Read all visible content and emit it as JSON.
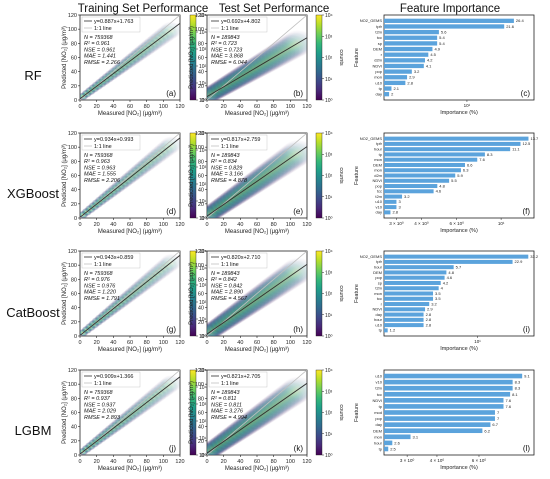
{
  "figure": {
    "column_titles": [
      "Training Set Performance",
      "Test Set Performance",
      "Feature Importance"
    ],
    "row_labels": [
      "RF",
      "XGBoost",
      "CatBoost",
      "LGBM"
    ]
  },
  "labels": {
    "scatter_xlabel": "Measured [NO₂] (μg/m³)",
    "scatter_ylabel": "Predicted [NO₂] (μg/m³)",
    "colorbar_label": "counts",
    "colorbar_ticks": [
      "10⁰",
      "10¹",
      "10²",
      "10³",
      "10⁴",
      "10⁵"
    ],
    "identity_label": "1:1 line",
    "importance_xlabel": "Importance (%)",
    "importance_ylabel": "Feature"
  },
  "chart_data": [
    {
      "type": "scatter",
      "panel": "a",
      "model": "RF",
      "set": "train",
      "fit": "y=0.887x+1.763",
      "slope": 0.887,
      "intercept": 1.763,
      "N": "759368",
      "R2": "0.961",
      "NSE": "0.961",
      "MAE": "1.441",
      "RMSE": "2.266",
      "cbar_max_exp": 5,
      "xlim": [
        0,
        120
      ],
      "ylim": [
        0,
        120
      ],
      "xticks": [
        0,
        20,
        40,
        60,
        80,
        100,
        120
      ],
      "yticks": [
        0,
        20,
        40,
        60,
        80,
        100,
        120
      ]
    },
    {
      "type": "scatter",
      "panel": "b",
      "model": "RF",
      "set": "test",
      "fit": "y=0.692x+4.802",
      "slope": 0.692,
      "intercept": 4.802,
      "N": "189843",
      "R2": "0.723",
      "NSE": "0.723",
      "MAE": "3.868",
      "RMSE": "6.044",
      "cbar_max_exp": 4,
      "xlim": [
        0,
        120
      ],
      "ylim": [
        0,
        120
      ],
      "xticks": [
        0,
        20,
        40,
        60,
        80,
        100,
        120
      ],
      "yticks": [
        0,
        20,
        40,
        60,
        80,
        100,
        120
      ]
    },
    {
      "type": "bar",
      "orientation": "horizontal",
      "panel": "c",
      "model": "RF",
      "categories": [
        "NO2_GEMS",
        "tpfr",
        "t2m",
        "tcc",
        "sp",
        "DEM",
        "r",
        "d2m",
        "NDVI",
        "pop",
        "mon",
        "u10",
        "tp",
        "day"
      ],
      "values": [
        26.4,
        21.6,
        5.6,
        5.4,
        5.4,
        4.9,
        4.5,
        4.2,
        4.1,
        3.2,
        2.9,
        2.8,
        2.1,
        2.0
      ],
      "xscale": "log",
      "xlim": [
        1.8,
        40
      ],
      "xticks": [
        {
          "v": 10,
          "t": "10¹"
        }
      ]
    },
    {
      "type": "scatter",
      "panel": "d",
      "model": "XGBoost",
      "set": "train",
      "fit": "y=0.934x+0.993",
      "slope": 0.934,
      "intercept": 0.993,
      "N": "759368",
      "R2": "0.963",
      "NSE": "0.963",
      "MAE": "1.555",
      "RMSE": "2.206",
      "cbar_max_exp": 5,
      "xlim": [
        0,
        120
      ],
      "ylim": [
        0,
        120
      ],
      "xticks": [
        0,
        20,
        40,
        60,
        80,
        100,
        120
      ],
      "yticks": [
        0,
        20,
        40,
        60,
        80,
        100,
        120
      ]
    },
    {
      "type": "scatter",
      "panel": "e",
      "model": "XGBoost",
      "set": "test",
      "fit": "y=0.817x+2.759",
      "slope": 0.817,
      "intercept": 2.759,
      "N": "189843",
      "R2": "0.834",
      "NSE": "0.829",
      "MAE": "3.166",
      "RMSE": "4.878",
      "cbar_max_exp": 4,
      "xlim": [
        0,
        120
      ],
      "ylim": [
        0,
        120
      ],
      "xticks": [
        0,
        20,
        40,
        60,
        80,
        100,
        120
      ],
      "yticks": [
        0,
        20,
        40,
        60,
        80,
        100,
        120
      ]
    },
    {
      "type": "bar",
      "orientation": "horizontal",
      "panel": "f",
      "model": "XGBoost",
      "categories": [
        "NO2_GEMS",
        "tpfr",
        "hour",
        "tp",
        "mon",
        "DEM",
        "mon",
        "d2m",
        "NDVI",
        "pop",
        "tcc",
        "t2m",
        "u10",
        "v10",
        "day"
      ],
      "values": [
        13.7,
        12.5,
        11.1,
        8.3,
        7.6,
        6.6,
        6.3,
        5.9,
        5.5,
        4.8,
        4.6,
        3.2,
        3.0,
        3.0,
        2.8
      ],
      "xscale": "log",
      "xlim": [
        2.6,
        14.6
      ],
      "xticks": [
        {
          "v": 3,
          "t": "3 × 10⁰"
        },
        {
          "v": 4,
          "t": "4 × 10⁰"
        },
        {
          "v": 6,
          "t": "6 × 10⁰"
        },
        {
          "v": 10,
          "t": "10¹"
        }
      ]
    },
    {
      "type": "scatter",
      "panel": "g",
      "model": "CatBoost",
      "set": "train",
      "fit": "y=0.943x+0.859",
      "slope": 0.943,
      "intercept": 0.859,
      "N": "759368",
      "R2": "0.976",
      "NSE": "0.976",
      "MAE": "1.220",
      "RMSE": "1.791",
      "cbar_max_exp": 5,
      "xlim": [
        0,
        120
      ],
      "ylim": [
        0,
        120
      ],
      "xticks": [
        0,
        20,
        40,
        60,
        80,
        100,
        120
      ],
      "yticks": [
        0,
        20,
        40,
        60,
        80,
        100,
        120
      ]
    },
    {
      "type": "scatter",
      "panel": "h",
      "model": "CatBoost",
      "set": "test",
      "fit": "y=0.820x+2.710",
      "slope": 0.82,
      "intercept": 2.71,
      "N": "189843",
      "R2": "0.842",
      "NSE": "0.842",
      "MAE": "2.890",
      "RMSE": "4.567",
      "cbar_max_exp": 4,
      "xlim": [
        0,
        120
      ],
      "ylim": [
        0,
        120
      ],
      "xticks": [
        0,
        20,
        40,
        60,
        80,
        100,
        120
      ],
      "yticks": [
        0,
        20,
        40,
        60,
        80,
        100,
        120
      ]
    },
    {
      "type": "bar",
      "orientation": "horizontal",
      "panel": "i",
      "model": "CatBoost",
      "categories": [
        "NO2_GEMS",
        "tpfr",
        "hour",
        "DEM",
        "pop",
        "sp",
        "t2m",
        "mon",
        "tcc",
        "r",
        "NDVI",
        "day",
        "hour",
        "u10",
        "tp"
      ],
      "values": [
        33.2,
        22.9,
        5.7,
        4.8,
        4.6,
        4.2,
        4.0,
        3.5,
        3.5,
        3.2,
        2.9,
        2.8,
        2.8,
        2.8,
        1.2
      ],
      "xscale": "log",
      "xlim": [
        1.1,
        38
      ],
      "xticks": [
        {
          "v": 10,
          "t": "10¹"
        }
      ]
    },
    {
      "type": "scatter",
      "panel": "j",
      "model": "LGBM",
      "set": "train",
      "fit": "y=0.909x+1.366",
      "slope": 0.909,
      "intercept": 1.366,
      "N": "759368",
      "R2": "0.937",
      "NSE": "0.937",
      "MAE": "2.029",
      "RMSE": "2.893",
      "cbar_max_exp": 5,
      "xlim": [
        0,
        120
      ],
      "ylim": [
        0,
        120
      ],
      "xticks": [
        0,
        20,
        40,
        60,
        80,
        100,
        120
      ],
      "yticks": [
        0,
        20,
        40,
        60,
        80,
        100,
        120
      ]
    },
    {
      "type": "scatter",
      "panel": "k",
      "model": "LGBM",
      "set": "test",
      "fit": "y=0.821x+2.705",
      "slope": 0.821,
      "intercept": 2.705,
      "N": "189843",
      "R2": "0.811",
      "NSE": "0.811",
      "MAE": "3.276",
      "RMSE": "4.994",
      "cbar_max_exp": 4,
      "xlim": [
        0,
        120
      ],
      "ylim": [
        0,
        120
      ],
      "xticks": [
        0,
        20,
        40,
        60,
        80,
        100,
        120
      ],
      "yticks": [
        0,
        20,
        40,
        60,
        80,
        100,
        120
      ]
    },
    {
      "type": "bar",
      "orientation": "horizontal",
      "panel": "l",
      "model": "LGBM",
      "categories": [
        "u10",
        "v10",
        "t2m",
        "tcc",
        "NDVI",
        "tp",
        "mod",
        "pop",
        "day",
        "DEM",
        "mon",
        "hour",
        "tp"
      ],
      "values": [
        9.1,
        8.3,
        8.3,
        8.1,
        7.6,
        7.6,
        7.0,
        7.0,
        6.7,
        6.2,
        3.1,
        2.6,
        2.5
      ],
      "xscale": "log",
      "xlim": [
        2.4,
        10.2
      ],
      "xticks": [
        {
          "v": 3,
          "t": "3 × 10⁰"
        },
        {
          "v": 4,
          "t": "4 × 10⁰"
        },
        {
          "v": 6,
          "t": "6 × 10⁰"
        }
      ]
    }
  ],
  "colors": {
    "bar": "#5ba3dc",
    "identity_line": "#bfbfbf",
    "fit_line": "#303030",
    "viridis": [
      "#440154",
      "#482878",
      "#3e4989",
      "#31688e",
      "#26828e",
      "#1f9e89",
      "#35b779",
      "#6ece58",
      "#b5de2b",
      "#fde725"
    ]
  }
}
